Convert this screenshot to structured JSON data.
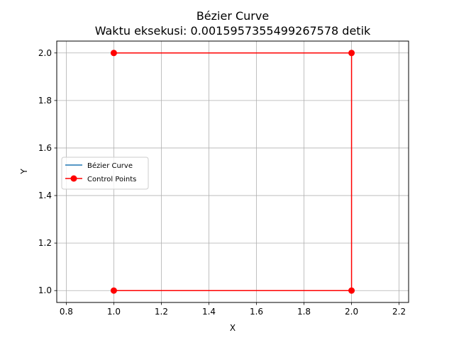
{
  "chart_data": {
    "type": "line",
    "title": "Bézier Curve",
    "subtitle": "Waktu eksekusi: 0.0015957355499267578 detik",
    "xlabel": "X",
    "ylabel": "Y",
    "xlim": [
      0.76,
      2.24
    ],
    "ylim": [
      0.95,
      2.05
    ],
    "xticks": [
      0.8,
      1.0,
      1.2,
      1.4,
      1.6,
      1.8,
      2.0,
      2.2
    ],
    "yticks": [
      1.0,
      1.2,
      1.4,
      1.6,
      1.8,
      2.0
    ],
    "xtick_labels": [
      "0.8",
      "1.0",
      "1.2",
      "1.4",
      "1.6",
      "1.8",
      "2.0",
      "2.2"
    ],
    "ytick_labels": [
      "1.0",
      "1.2",
      "1.4",
      "1.6",
      "1.8",
      "2.0"
    ],
    "grid": true,
    "legend_position": "center-left",
    "series": [
      {
        "name": "Bézier Curve",
        "color": "#1f77b4",
        "x": [
          1.0,
          1.0975,
          1.19,
          1.2775,
          1.36,
          1.4375,
          1.51,
          1.5775,
          1.64,
          1.6975,
          1.75,
          1.7975,
          1.84,
          1.8775,
          1.91,
          1.9375,
          1.96,
          1.9775,
          1.99,
          1.9975,
          2.0
        ],
        "y": [
          1.0,
          1.0,
          1.0,
          1.0,
          1.0,
          1.0,
          1.0,
          1.0,
          1.0,
          1.0,
          1.0,
          1.0,
          1.0,
          1.0,
          1.0,
          1.0,
          1.0,
          1.0,
          1.0,
          1.0,
          1.0
        ]
      },
      {
        "name": "Control Points",
        "color": "#ff0000",
        "marker": "circle",
        "x": [
          1.0,
          2.0,
          2.0,
          1.0
        ],
        "y": [
          1.0,
          1.0,
          2.0,
          2.0
        ]
      }
    ]
  }
}
